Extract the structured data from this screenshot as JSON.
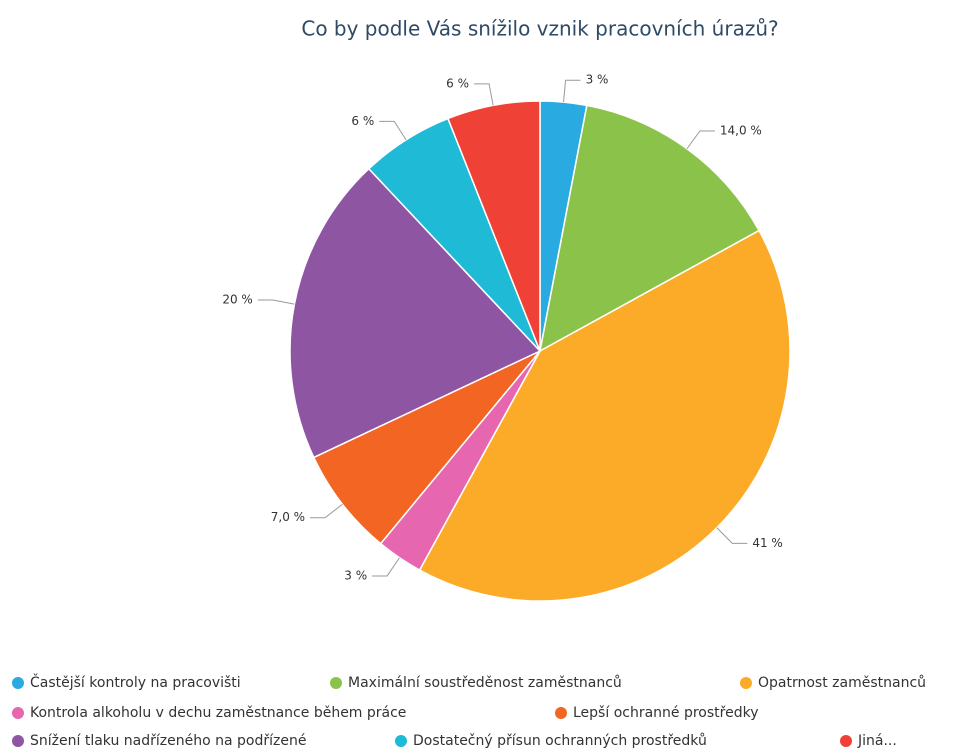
{
  "chart_data": {
    "type": "pie",
    "title": "Co by podle Vás snížilo vznik pracovních úrazů?",
    "categories": [
      "Častější kontroly na pracovišti",
      "Maximální soustředěnost zaměstnanců",
      "Opatrnost zaměstnanců",
      "Kontrola alkoholu v dechu zaměstnance během práce",
      "Lepší ochranné prostředky",
      "Snížení tlaku nadřízeného na podřízené",
      "Dostatečný přísun ochranných prostředků",
      "Jiná..."
    ],
    "values": [
      3,
      14.0,
      41,
      3,
      7.0,
      20,
      6,
      6
    ],
    "value_labels": [
      "3 %",
      "14,0 %",
      "41 %",
      "3 %",
      "7,0 %",
      "20 %",
      "6 %",
      "6 %"
    ],
    "colors": [
      "#29abe2",
      "#8bc34a",
      "#fbab28",
      "#e667af",
      "#f26522",
      "#8e55a3",
      "#1fbad6",
      "#ef4136"
    ],
    "legend": "bottom"
  }
}
